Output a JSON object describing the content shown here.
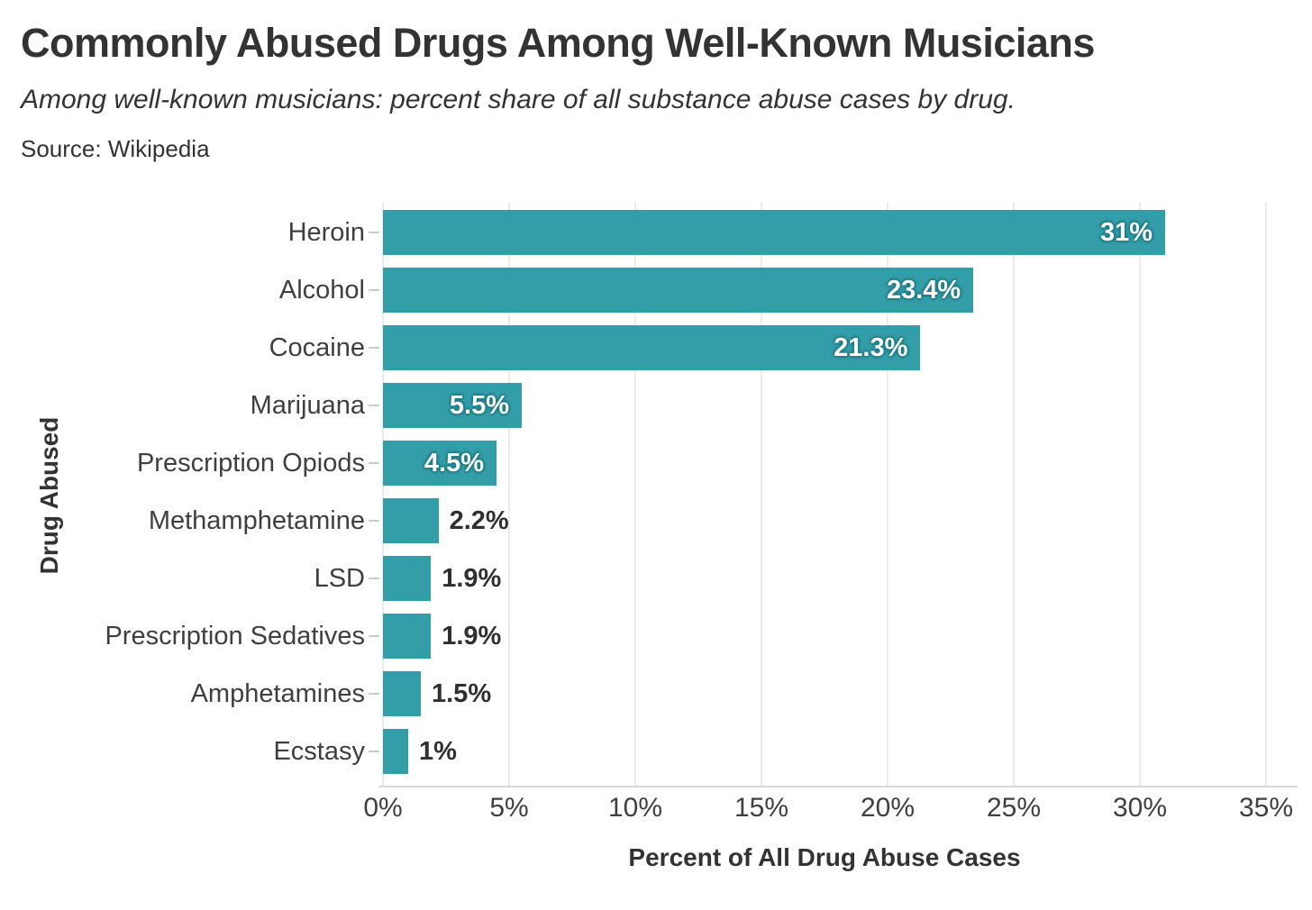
{
  "header": {
    "title": "Commonly Abused Drugs Among Well-Known Musicians",
    "subtitle": "Among well-known musicians: percent share of all substance abuse cases by drug.",
    "source": "Source: Wikipedia"
  },
  "chart_data": {
    "type": "bar",
    "orientation": "horizontal",
    "title": "Commonly Abused Drugs Among Well-Known Musicians",
    "subtitle": "Among well-known musicians: percent share of all substance abuse cases by drug.",
    "source": "Source: Wikipedia",
    "xlabel": "Percent of All Drug Abuse Cases",
    "ylabel": "Drug Abused",
    "categories": [
      "Heroin",
      "Alcohol",
      "Cocaine",
      "Marijuana",
      "Prescription Opiods",
      "Methamphetamine",
      "LSD",
      "Prescription Sedatives",
      "Amphetamines",
      "Ecstasy"
    ],
    "values": [
      31,
      23.4,
      21.3,
      5.5,
      4.5,
      2.2,
      1.9,
      1.9,
      1.5,
      1
    ],
    "value_labels": [
      "31%",
      "23.4%",
      "21.3%",
      "5.5%",
      "4.5%",
      "2.2%",
      "1.9%",
      "1.9%",
      "1.5%",
      "1%"
    ],
    "xlim": [
      0,
      35
    ],
    "xticks": [
      0,
      5,
      10,
      15,
      20,
      25,
      30,
      35
    ],
    "xtick_labels": [
      "0%",
      "5%",
      "10%",
      "15%",
      "20%",
      "25%",
      "30%",
      "35%"
    ],
    "grid": true,
    "legend": "none",
    "bar_color": "#339DA8"
  },
  "colors": {
    "bar": "#339DA8",
    "background": "#ffffff",
    "gridline": "#ececec",
    "axis_line": "#d9d9d9",
    "title_text": "#333333",
    "label_text": "#3f3f3f",
    "inside_value_text": "#ffffff",
    "outside_value_text": "#2f2f2f"
  }
}
